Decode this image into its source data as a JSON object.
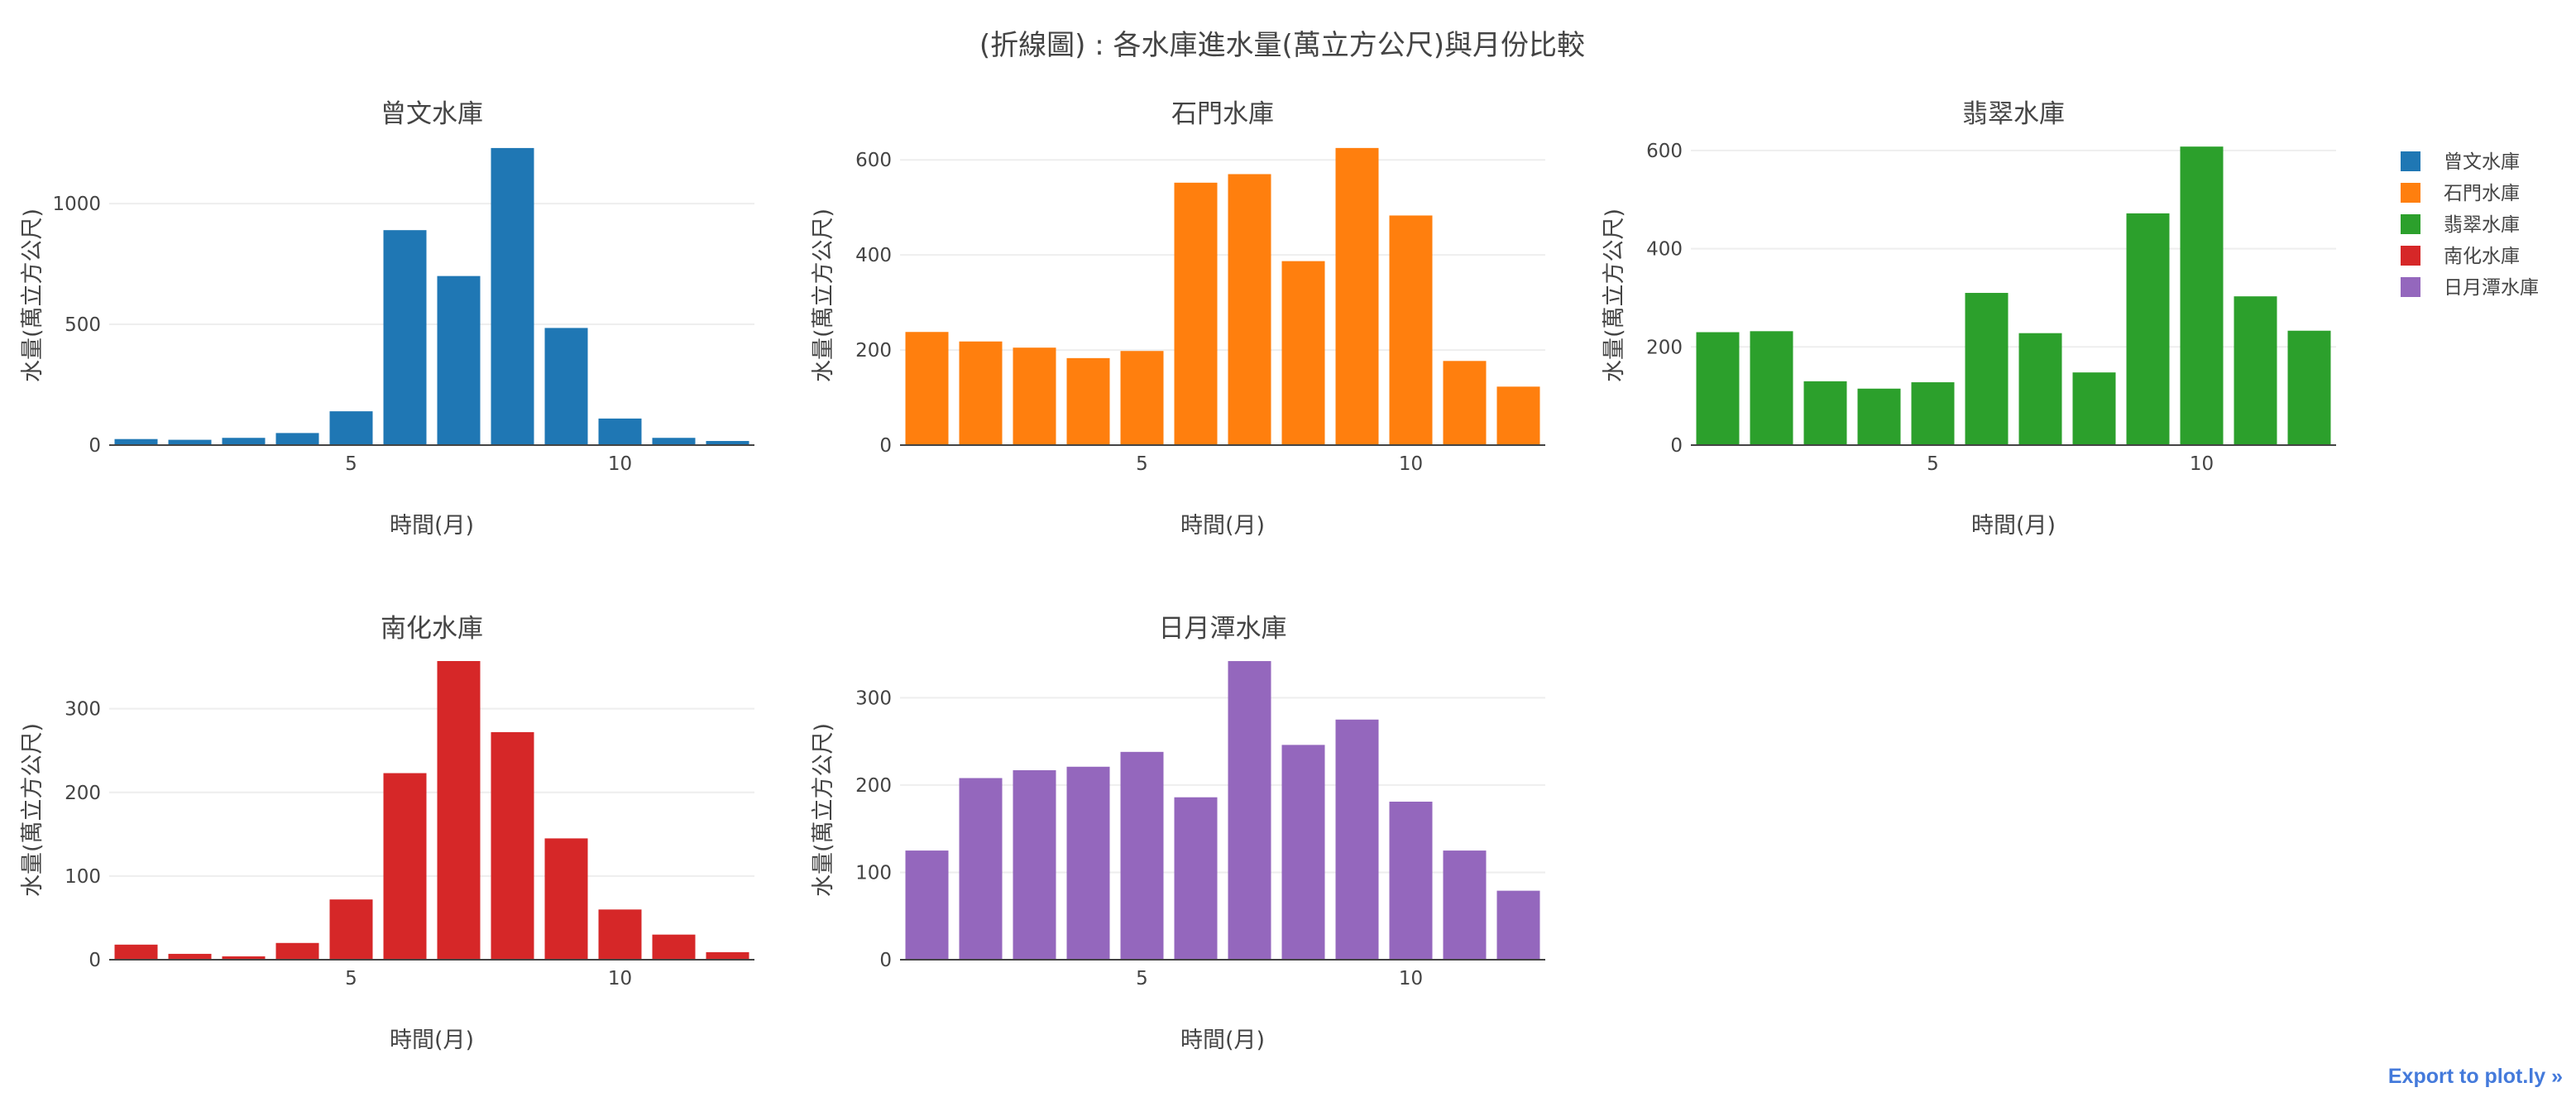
{
  "title": "(折線圖) : 各水庫進水量(萬立方公尺)與月份比較",
  "export_link": "Export to plot.ly »",
  "legend": [
    {
      "name": "曾文水庫",
      "color": "#1f77b4"
    },
    {
      "name": "石門水庫",
      "color": "#ff7f0e"
    },
    {
      "name": "翡翠水庫",
      "color": "#2ca02c"
    },
    {
      "name": "南化水庫",
      "color": "#d62728"
    },
    {
      "name": "日月潭水庫",
      "color": "#9467bd"
    }
  ],
  "chart_data": [
    {
      "type": "bar",
      "title": "曾文水庫",
      "xlabel": "時間(月)",
      "ylabel": "水量(萬立方公尺)",
      "color": "#1f77b4",
      "x": [
        1,
        2,
        3,
        4,
        5,
        6,
        7,
        8,
        9,
        10,
        11,
        12
      ],
      "values": [
        25,
        22,
        30,
        50,
        140,
        890,
        700,
        1230,
        485,
        110,
        30,
        17
      ],
      "xticks": [
        5,
        10
      ],
      "yticks": [
        0,
        500,
        1000
      ],
      "ylim": [
        0,
        1240
      ],
      "xlim": [
        0.5,
        12.5
      ]
    },
    {
      "type": "bar",
      "title": "石門水庫",
      "xlabel": "時間(月)",
      "ylabel": "水量(萬立方公尺)",
      "color": "#ff7f0e",
      "x": [
        1,
        2,
        3,
        4,
        5,
        6,
        7,
        8,
        9,
        10,
        11,
        12
      ],
      "values": [
        238,
        218,
        205,
        183,
        198,
        552,
        570,
        387,
        625,
        483,
        177,
        123
      ],
      "xticks": [
        5,
        10
      ],
      "yticks": [
        0,
        200,
        400,
        600
      ],
      "ylim": [
        0,
        630
      ],
      "xlim": [
        0.5,
        12.5
      ]
    },
    {
      "type": "bar",
      "title": "翡翠水庫",
      "xlabel": "時間(月)",
      "ylabel": "水量(萬立方公尺)",
      "color": "#2ca02c",
      "x": [
        1,
        2,
        3,
        4,
        5,
        6,
        7,
        8,
        9,
        10,
        11,
        12
      ],
      "values": [
        230,
        232,
        130,
        115,
        128,
        310,
        228,
        148,
        472,
        608,
        303,
        233
      ],
      "xticks": [
        5,
        10
      ],
      "yticks": [
        0,
        200,
        400,
        600
      ],
      "ylim": [
        0,
        610
      ],
      "xlim": [
        0.5,
        12.5
      ]
    },
    {
      "type": "bar",
      "title": "南化水庫",
      "xlabel": "時間(月)",
      "ylabel": "水量(萬立方公尺)",
      "color": "#d62728",
      "x": [
        1,
        2,
        3,
        4,
        5,
        6,
        7,
        8,
        9,
        10,
        11,
        12
      ],
      "values": [
        18,
        7,
        4,
        20,
        72,
        223,
        357,
        272,
        145,
        60,
        30,
        9
      ],
      "xticks": [
        5,
        10
      ],
      "yticks": [
        0,
        100,
        200,
        300
      ],
      "ylim": [
        0,
        358
      ],
      "xlim": [
        0.5,
        12.5
      ]
    },
    {
      "type": "bar",
      "title": "日月潭水庫",
      "xlabel": "時間(月)",
      "ylabel": "水量(萬立方公尺)",
      "color": "#9467bd",
      "x": [
        1,
        2,
        3,
        4,
        5,
        6,
        7,
        8,
        9,
        10,
        11,
        12
      ],
      "values": [
        125,
        208,
        217,
        221,
        238,
        186,
        342,
        246,
        275,
        181,
        125,
        79
      ],
      "xticks": [
        5,
        10
      ],
      "yticks": [
        0,
        100,
        200,
        300
      ],
      "ylim": [
        0,
        343
      ],
      "xlim": [
        0.5,
        12.5
      ]
    }
  ]
}
